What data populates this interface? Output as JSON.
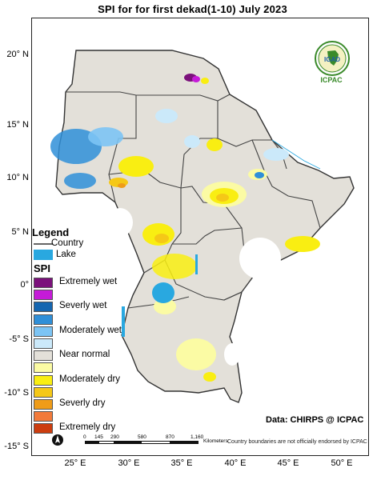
{
  "title": "SPI  for for   first dekad(1-10)  July  2023",
  "latitude_labels": [
    "20° N",
    "15° N",
    "10° N",
    "5° N",
    "0°",
    "-5° S",
    "-10° S",
    "-15° S"
  ],
  "longitude_labels": [
    "25° E",
    "30° E",
    "35° E",
    "40° E",
    "45° E",
    "50° E"
  ],
  "legend": {
    "title": "Legend",
    "country_label": "Country",
    "lake_label": "Lake",
    "lake_color": "#29a8e0",
    "spi_title": "SPI",
    "classes": [
      {
        "label": "Extremely wet",
        "color": "#7b117b",
        "show_label": true
      },
      {
        "label": "",
        "color": "#c51bd8",
        "show_label": false
      },
      {
        "label": "Severly wet",
        "color": "#1566b0",
        "show_label": true
      },
      {
        "label": "",
        "color": "#2f8fd8",
        "show_label": false
      },
      {
        "label": "Moderately wet",
        "color": "#7cc4f4",
        "show_label": true
      },
      {
        "label": "",
        "color": "#cbe9fa",
        "show_label": false
      },
      {
        "label": "Near normal",
        "color": "#e3e0d9",
        "show_label": true
      },
      {
        "label": "",
        "color": "#fbfba4",
        "show_label": false
      },
      {
        "label": "Moderately dry",
        "color": "#f9ee12",
        "show_label": true
      },
      {
        "label": "",
        "color": "#f5c817",
        "show_label": false
      },
      {
        "label": "Severly dry",
        "color": "#ef9c19",
        "show_label": true
      },
      {
        "label": "",
        "color": "#f27a3a",
        "show_label": false
      },
      {
        "label": "Extremely dry",
        "color": "#cc3d0f",
        "show_label": true
      }
    ]
  },
  "logo": {
    "acronym": "IGAD",
    "org": "ICPAC"
  },
  "credit": "Data: CHIRPS @ ICPAC",
  "scale_bar": {
    "labels": [
      "0",
      "145",
      "290",
      "580",
      "870",
      "1,160"
    ],
    "unit": "Kilometers"
  },
  "north_arrow": "N",
  "disclaimer": "Country boundaries are not officially endorsed by ICPAC"
}
